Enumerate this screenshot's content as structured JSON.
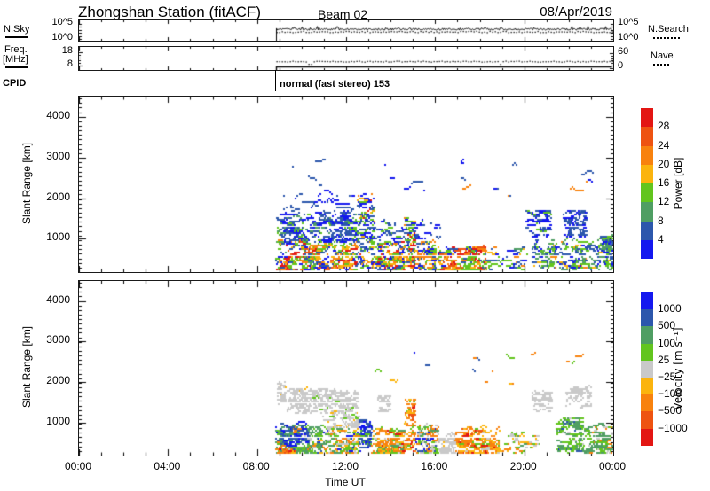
{
  "title": {
    "station": "Zhongshan Station (fitACF)",
    "beam": "Beam 02",
    "date": "08/Apr/2019"
  },
  "panels": {
    "nsky": {
      "left_label": "N.Sky",
      "right_label": "N.Search",
      "yticks_left": [
        "10^5",
        "10^0"
      ],
      "yticks_right": [
        "10^5",
        "10^0"
      ]
    },
    "freq": {
      "left_label_top": "Freq.",
      "left_label_bottom": "[MHz]",
      "right_label": "Nave",
      "yticks_left": [
        "18",
        "8"
      ],
      "yticks_right": [
        "60",
        "0"
      ]
    },
    "cpid": {
      "label": "CPID",
      "value": "normal (fast stereo) 153"
    },
    "power": {
      "ylabel": "Slant Range [km]",
      "yticks": [
        1000,
        2000,
        3000,
        4000
      ]
    },
    "velocity": {
      "ylabel": "Slant Range [km]",
      "yticks": [
        1000,
        2000,
        3000,
        4000
      ]
    }
  },
  "xaxis": {
    "label": "Time UT",
    "ticks": [
      "00:00",
      "04:00",
      "08:00",
      "12:00",
      "16:00",
      "20:00",
      "00:00"
    ],
    "hours": [
      0,
      4,
      8,
      12,
      16,
      20,
      24
    ]
  },
  "colors": {
    "red": "#e31613",
    "orangered": "#ee5311",
    "orange": "#f8820e",
    "amber": "#fbb40e",
    "green": "#62c51e",
    "seagreen": "#4f9e63",
    "dblue": "#2c57ac",
    "blue": "#1418ef",
    "gray": "#c9c9c9"
  },
  "colorbars": {
    "power": {
      "title": "Power [dB]",
      "segments": [
        "red",
        "orangered",
        "orange",
        "amber",
        "green",
        "seagreen",
        "dblue",
        "blue"
      ],
      "labels": [
        "28",
        "24",
        "20",
        "16",
        "12",
        "8",
        "4"
      ]
    },
    "velocity": {
      "title": "Velocity [m s⁻¹]",
      "segments": [
        "blue",
        "dblue",
        "seagreen",
        "green",
        "gray",
        "amber",
        "orange",
        "orangered",
        "red"
      ],
      "labels": [
        "1000",
        "500",
        "100",
        "25",
        "−25",
        "−100",
        "−500",
        "−1000"
      ]
    }
  },
  "chart_data": {
    "type": "heatmap",
    "subtype": "range-time-intensity",
    "station": "Zhongshan",
    "beam": 2,
    "date": "2019-04-08",
    "x": {
      "label": "Time UT",
      "start_hour": 0,
      "end_hour": 24,
      "tick_hours": [
        0,
        4,
        8,
        12,
        16,
        20,
        24
      ]
    },
    "y": {
      "label": "Slant Range [km]",
      "min_km": 180,
      "max_km": 4500,
      "ticks": [
        1000,
        2000,
        3000,
        4000
      ],
      "gate_km": 45
    },
    "data_start_hour": 8.85,
    "nsky": {
      "scale": "log",
      "axis_bottom": "10^0",
      "axis_top": "10^5",
      "nsky_level": 800,
      "nsearch_level": 250
    },
    "freq": {
      "freq_mhz": 9.5,
      "nave": 28,
      "left_axis_mhz": [
        8,
        18
      ],
      "right_axis_nave": [
        0,
        60
      ]
    },
    "cpid": "normal (fast stereo) 153",
    "power_scale": {
      "unit": "dB",
      "thresholds": [
        4,
        8,
        12,
        16,
        20,
        24,
        28
      ]
    },
    "velocity_scale": {
      "unit": "m/s",
      "thresholds": [
        -1000,
        -500,
        -100,
        -25,
        25,
        100,
        500,
        1000
      ]
    },
    "power_clusters": [
      {
        "t0": 8.8,
        "t1": 10.8,
        "r0": 180,
        "r1": 950,
        "n": 520,
        "bias": 1.5,
        "colors": [
          [
            "red",
            0.13
          ],
          [
            "orangered",
            0.1
          ],
          [
            "orange",
            0.14
          ],
          [
            "amber",
            0.13
          ],
          [
            "green",
            0.22
          ],
          [
            "seagreen",
            0.06
          ],
          [
            "dblue",
            0.12
          ],
          [
            "blue",
            0.1
          ]
        ]
      },
      {
        "t0": 10.8,
        "t1": 12.45,
        "r0": 180,
        "r1": 900,
        "n": 330,
        "bias": 1.3,
        "colors": [
          [
            "green",
            0.26
          ],
          [
            "amber",
            0.15
          ],
          [
            "orange",
            0.13
          ],
          [
            "red",
            0.06
          ],
          [
            "orangered",
            0.05
          ],
          [
            "dblue",
            0.2
          ],
          [
            "blue",
            0.15
          ]
        ]
      },
      {
        "t0": 8.85,
        "t1": 12.45,
        "r0": 880,
        "r1": 1580,
        "n": 620,
        "colors": [
          [
            "dblue",
            0.42
          ],
          [
            "blue",
            0.34
          ],
          [
            "green",
            0.12
          ],
          [
            "seagreen",
            0.12
          ]
        ]
      },
      {
        "t0": 9.0,
        "t1": 12.3,
        "r0": 1580,
        "r1": 2050,
        "n": 90,
        "colors": [
          [
            "dblue",
            0.5
          ],
          [
            "blue",
            0.5
          ]
        ]
      },
      {
        "t0": 12.45,
        "t1": 13.25,
        "r0": 250,
        "r1": 2100,
        "n": 300,
        "bias": 1.2,
        "colors": [
          [
            "dblue",
            0.28
          ],
          [
            "blue",
            0.27
          ],
          [
            "green",
            0.23
          ],
          [
            "orange",
            0.09
          ],
          [
            "amber",
            0.07
          ],
          [
            "red",
            0.06
          ]
        ]
      },
      {
        "t0": 13.25,
        "t1": 14.6,
        "r0": 180,
        "r1": 850,
        "n": 360,
        "bias": 1.4,
        "colors": [
          [
            "green",
            0.27
          ],
          [
            "amber",
            0.16
          ],
          [
            "orange",
            0.15
          ],
          [
            "red",
            0.09
          ],
          [
            "orangered",
            0.06
          ],
          [
            "dblue",
            0.15
          ],
          [
            "blue",
            0.12
          ]
        ]
      },
      {
        "t0": 14.6,
        "t1": 15.05,
        "r0": 280,
        "r1": 1520,
        "n": 150,
        "colors": [
          [
            "green",
            0.34
          ],
          [
            "dblue",
            0.16
          ],
          [
            "blue",
            0.14
          ],
          [
            "orange",
            0.14
          ],
          [
            "amber",
            0.12
          ],
          [
            "red",
            0.1
          ]
        ]
      },
      {
        "t0": 15.05,
        "t1": 16.0,
        "r0": 180,
        "r1": 950,
        "n": 200,
        "bias": 1.3,
        "colors": [
          [
            "dblue",
            0.22
          ],
          [
            "blue",
            0.18
          ],
          [
            "green",
            0.26
          ],
          [
            "amber",
            0.17
          ],
          [
            "orange",
            0.17
          ]
        ]
      },
      {
        "t0": 16.0,
        "t1": 18.25,
        "r0": 180,
        "r1": 780,
        "n": 520,
        "bias": 1.5,
        "colors": [
          [
            "red",
            0.14
          ],
          [
            "orangered",
            0.1
          ],
          [
            "orange",
            0.2
          ],
          [
            "amber",
            0.17
          ],
          [
            "green",
            0.23
          ],
          [
            "dblue",
            0.09
          ],
          [
            "blue",
            0.07
          ]
        ]
      },
      {
        "t0": 12.5,
        "t1": 16.2,
        "r0": 950,
        "r1": 1450,
        "n": 140,
        "colors": [
          [
            "dblue",
            0.5
          ],
          [
            "blue",
            0.4
          ],
          [
            "green",
            0.1
          ]
        ]
      },
      {
        "t0": 18.25,
        "t1": 20.1,
        "r0": 200,
        "r1": 800,
        "n": 110,
        "colors": [
          [
            "dblue",
            0.3
          ],
          [
            "blue",
            0.2
          ],
          [
            "green",
            0.25
          ],
          [
            "seagreen",
            0.1
          ],
          [
            "amber",
            0.08
          ],
          [
            "orange",
            0.07
          ]
        ]
      },
      {
        "t0": 20.05,
        "t1": 21.15,
        "r0": 1020,
        "r1": 1680,
        "n": 150,
        "colors": [
          [
            "dblue",
            0.52
          ],
          [
            "blue",
            0.44
          ],
          [
            "green",
            0.04
          ]
        ]
      },
      {
        "t0": 21.7,
        "t1": 22.75,
        "r0": 1020,
        "r1": 1660,
        "n": 160,
        "colors": [
          [
            "dblue",
            0.5
          ],
          [
            "blue",
            0.46
          ],
          [
            "green",
            0.04
          ]
        ]
      },
      {
        "t0": 20.3,
        "t1": 23.2,
        "r0": 250,
        "r1": 950,
        "n": 380,
        "bias": 1.3,
        "colors": [
          [
            "green",
            0.28
          ],
          [
            "seagreen",
            0.2
          ],
          [
            "dblue",
            0.22
          ],
          [
            "blue",
            0.18
          ],
          [
            "amber",
            0.06
          ],
          [
            "orange",
            0.06
          ]
        ]
      },
      {
        "t0": 23.2,
        "t1": 24.0,
        "r0": 280,
        "r1": 1050,
        "n": 220,
        "colors": [
          [
            "green",
            0.3
          ],
          [
            "seagreen",
            0.24
          ],
          [
            "dblue",
            0.24
          ],
          [
            "blue",
            0.18
          ],
          [
            "amber",
            0.04
          ]
        ]
      },
      {
        "t0": 12.2,
        "t1": 23.8,
        "r0": 2000,
        "r1": 3100,
        "n": 55,
        "colors": [
          [
            "dblue",
            0.45
          ],
          [
            "blue",
            0.45
          ],
          [
            "orange",
            0.1
          ]
        ]
      },
      {
        "t0": 9.2,
        "t1": 11.9,
        "r0": 1900,
        "r1": 2950,
        "n": 22,
        "colors": [
          [
            "dblue",
            0.5
          ],
          [
            "blue",
            0.5
          ]
        ]
      }
    ],
    "velocity_clusters": [
      {
        "t0": 8.8,
        "t1": 10.9,
        "r0": 180,
        "r1": 880,
        "n": 600,
        "bias": 1.4,
        "colors": [
          [
            "seagreen",
            0.42
          ],
          [
            "green",
            0.22
          ],
          [
            "dblue",
            0.1
          ],
          [
            "blue",
            0.08
          ],
          [
            "orange",
            0.07
          ],
          [
            "amber",
            0.06
          ],
          [
            "gray",
            0.05
          ]
        ]
      },
      {
        "t0": 9.0,
        "t1": 10.3,
        "r0": 420,
        "r1": 950,
        "n": 130,
        "colors": [
          [
            "dblue",
            0.55
          ],
          [
            "blue",
            0.45
          ]
        ]
      },
      {
        "t0": 8.8,
        "t1": 9.7,
        "r0": 180,
        "r1": 320,
        "n": 60,
        "colors": [
          [
            "orange",
            0.45
          ],
          [
            "amber",
            0.3
          ],
          [
            "red",
            0.15
          ],
          [
            "orangered",
            0.1
          ]
        ]
      },
      {
        "t0": 8.85,
        "t1": 9.25,
        "r0": 1450,
        "r1": 1980,
        "n": 70,
        "colors": [
          [
            "gray",
            0.9
          ],
          [
            "amber",
            0.1
          ]
        ]
      },
      {
        "t0": 9.3,
        "t1": 12.5,
        "r0": 1230,
        "r1": 1800,
        "n": 520,
        "colors": [
          [
            "gray",
            0.93
          ],
          [
            "amber",
            0.04
          ],
          [
            "green",
            0.03
          ]
        ]
      },
      {
        "t0": 10.9,
        "t1": 12.6,
        "r0": 820,
        "r1": 1230,
        "n": 140,
        "colors": [
          [
            "gray",
            0.8
          ],
          [
            "green",
            0.1
          ],
          [
            "amber",
            0.1
          ]
        ]
      },
      {
        "t0": 10.9,
        "t1": 12.55,
        "r0": 180,
        "r1": 820,
        "n": 330,
        "bias": 1.3,
        "colors": [
          [
            "green",
            0.26
          ],
          [
            "seagreen",
            0.18
          ],
          [
            "orange",
            0.2
          ],
          [
            "amber",
            0.14
          ],
          [
            "gray",
            0.14
          ],
          [
            "blue",
            0.08
          ]
        ]
      },
      {
        "t0": 12.55,
        "t1": 13.1,
        "r0": 280,
        "r1": 1050,
        "n": 150,
        "colors": [
          [
            "dblue",
            0.5
          ],
          [
            "blue",
            0.36
          ],
          [
            "green",
            0.14
          ]
        ]
      },
      {
        "t0": 13.1,
        "t1": 14.6,
        "r0": 180,
        "r1": 820,
        "n": 430,
        "bias": 1.4,
        "colors": [
          [
            "orange",
            0.46
          ],
          [
            "amber",
            0.2
          ],
          [
            "green",
            0.14
          ],
          [
            "seagreen",
            0.08
          ],
          [
            "red",
            0.05
          ],
          [
            "gray",
            0.07
          ]
        ]
      },
      {
        "t0": 13.35,
        "t1": 13.95,
        "r0": 1230,
        "r1": 1650,
        "n": 60,
        "colors": [
          [
            "gray",
            1.0
          ]
        ]
      },
      {
        "t0": 14.6,
        "t1": 15.05,
        "r0": 280,
        "r1": 1560,
        "n": 150,
        "colors": [
          [
            "orange",
            0.58
          ],
          [
            "amber",
            0.18
          ],
          [
            "green",
            0.1
          ],
          [
            "red",
            0.08
          ],
          [
            "orangered",
            0.06
          ]
        ]
      },
      {
        "t0": 15.05,
        "t1": 16.1,
        "r0": 200,
        "r1": 900,
        "n": 250,
        "bias": 1.2,
        "colors": [
          [
            "green",
            0.28
          ],
          [
            "gray",
            0.2
          ],
          [
            "orange",
            0.2
          ],
          [
            "seagreen",
            0.14
          ],
          [
            "blue",
            0.09
          ],
          [
            "dblue",
            0.09
          ]
        ]
      },
      {
        "t0": 16.1,
        "t1": 16.85,
        "r0": 200,
        "r1": 620,
        "n": 130,
        "colors": [
          [
            "gray",
            0.88
          ],
          [
            "amber",
            0.12
          ]
        ]
      },
      {
        "t0": 16.85,
        "t1": 18.85,
        "r0": 180,
        "r1": 850,
        "n": 480,
        "bias": 1.4,
        "colors": [
          [
            "orange",
            0.52
          ],
          [
            "amber",
            0.22
          ],
          [
            "red",
            0.07
          ],
          [
            "orangered",
            0.05
          ],
          [
            "green",
            0.08
          ],
          [
            "gray",
            0.06
          ]
        ]
      },
      {
        "t0": 18.9,
        "t1": 20.6,
        "r0": 200,
        "r1": 750,
        "n": 100,
        "colors": [
          [
            "green",
            0.3
          ],
          [
            "orange",
            0.22
          ],
          [
            "amber",
            0.18
          ],
          [
            "gray",
            0.16
          ],
          [
            "seagreen",
            0.14
          ]
        ]
      },
      {
        "t0": 20.3,
        "t1": 21.2,
        "r0": 1260,
        "r1": 1760,
        "n": 110,
        "colors": [
          [
            "gray",
            1.0
          ]
        ]
      },
      {
        "t0": 21.85,
        "t1": 22.95,
        "r0": 1340,
        "r1": 1820,
        "n": 120,
        "colors": [
          [
            "gray",
            0.95
          ],
          [
            "dblue",
            0.05
          ]
        ]
      },
      {
        "t0": 21.4,
        "t1": 22.6,
        "r0": 260,
        "r1": 1100,
        "n": 300,
        "bias": 1.2,
        "colors": [
          [
            "green",
            0.44
          ],
          [
            "seagreen",
            0.34
          ],
          [
            "gray",
            0.1
          ],
          [
            "dblue",
            0.07
          ],
          [
            "blue",
            0.05
          ]
        ]
      },
      {
        "t0": 22.6,
        "t1": 24.0,
        "r0": 180,
        "r1": 880,
        "n": 340,
        "bias": 1.2,
        "colors": [
          [
            "seagreen",
            0.5
          ],
          [
            "green",
            0.28
          ],
          [
            "gray",
            0.1
          ],
          [
            "orange",
            0.12
          ]
        ]
      },
      {
        "t0": 12.5,
        "t1": 23.8,
        "r0": 1900,
        "r1": 2900,
        "n": 42,
        "colors": [
          [
            "orange",
            0.3
          ],
          [
            "green",
            0.25
          ],
          [
            "blue",
            0.18
          ],
          [
            "dblue",
            0.15
          ],
          [
            "amber",
            0.12
          ]
        ]
      }
    ]
  }
}
